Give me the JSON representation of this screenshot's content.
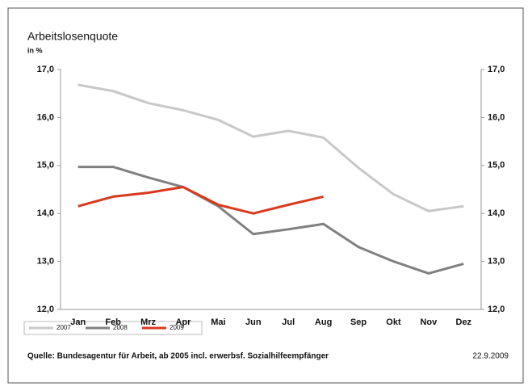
{
  "chart_data": {
    "type": "line",
    "title": "Arbeitslosenquote",
    "subtitle": "in %",
    "categories": [
      "Jan",
      "Feb",
      "Mrz",
      "Apr",
      "Mai",
      "Jun",
      "Jul",
      "Aug",
      "Sep",
      "Okt",
      "Nov",
      "Dez"
    ],
    "series": [
      {
        "name": "2007",
        "color": "#c8c8c8",
        "values": [
          16.68,
          16.55,
          16.3,
          16.15,
          15.95,
          15.6,
          15.72,
          15.58,
          14.95,
          14.4,
          14.05,
          14.15
        ]
      },
      {
        "name": "2008",
        "color": "#808080",
        "values": [
          14.97,
          14.97,
          14.75,
          14.55,
          14.15,
          13.57,
          13.67,
          13.78,
          13.3,
          13.0,
          12.75,
          12.95
        ]
      },
      {
        "name": "2009",
        "color": "#d93a1e",
        "values": [
          14.15,
          14.35,
          14.43,
          14.55,
          14.18,
          14.0,
          14.18,
          14.35,
          null,
          null,
          null,
          null
        ]
      }
    ],
    "ylim": [
      12,
      17
    ],
    "yticks": [
      {
        "value": 12,
        "label": "12,0"
      },
      {
        "value": 13,
        "label": "13,0"
      },
      {
        "value": 14,
        "label": "14,0"
      },
      {
        "value": 15,
        "label": "15,0"
      },
      {
        "value": 16,
        "label": "16,0"
      },
      {
        "value": 17,
        "label": "17,0"
      }
    ],
    "grid": false,
    "source": "Quelle: Bundesagentur für Arbeit, ab 2005 incl. erwerbsf. Sozialhilfeempfänger",
    "date": "22.9.2009"
  }
}
